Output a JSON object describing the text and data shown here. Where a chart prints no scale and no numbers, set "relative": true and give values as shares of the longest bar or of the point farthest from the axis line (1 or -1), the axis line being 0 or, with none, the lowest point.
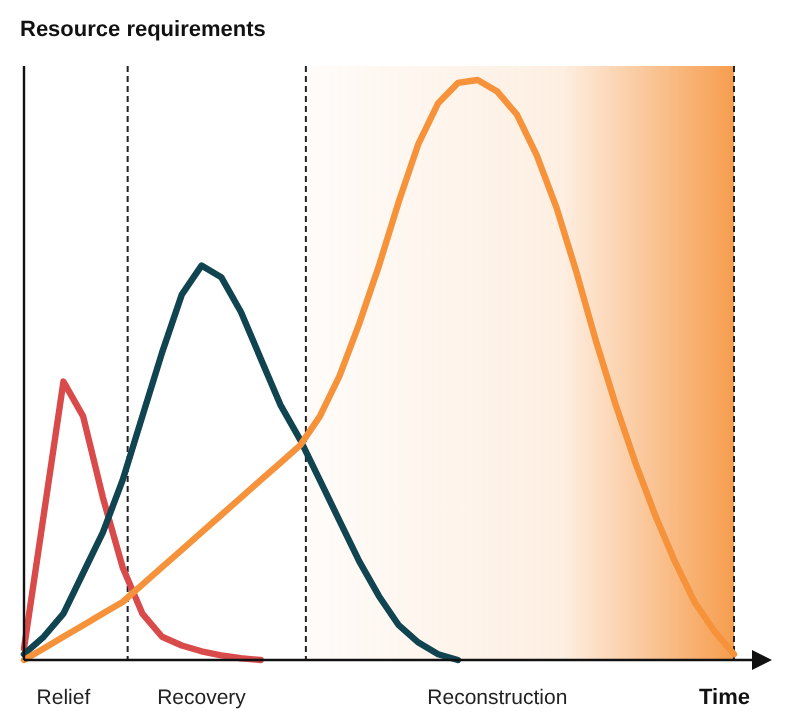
{
  "chart_data": {
    "type": "line",
    "title": "Resource requirements",
    "xlabel": "Time",
    "relative": true,
    "line_style": "solid",
    "marker": "none",
    "categories": [
      null,
      null,
      "Relief",
      null,
      null,
      null,
      null,
      null,
      null,
      "Recovery",
      null,
      null,
      null,
      null,
      null,
      null,
      null,
      null,
      null,
      null,
      null,
      null,
      null,
      null,
      "Reconstruction",
      null,
      null,
      null,
      null,
      null,
      null,
      null,
      null,
      null,
      null,
      null,
      null
    ],
    "series": [
      {
        "color": "#d94a4a",
        "values": [
          0.02,
          0.25,
          0.48,
          0.42,
          0.28,
          0.16,
          0.08,
          0.04,
          0.025,
          0.015,
          0.008,
          0.003,
          0,
          null,
          null,
          null,
          null,
          null,
          null,
          null,
          null,
          null,
          null,
          null,
          null,
          null,
          null,
          null,
          null,
          null,
          null,
          null,
          null,
          null,
          null,
          null,
          null
        ]
      },
      {
        "color": "#0f4450",
        "values": [
          0.01,
          0.04,
          0.08,
          0.15,
          0.22,
          0.31,
          0.42,
          0.53,
          0.63,
          0.68,
          0.66,
          0.6,
          0.52,
          0.44,
          0.38,
          0.31,
          0.24,
          0.17,
          0.11,
          0.06,
          0.03,
          0.01,
          0,
          null,
          null,
          null,
          null,
          null,
          null,
          null,
          null,
          null,
          null,
          null,
          null,
          null,
          null
        ]
      },
      {
        "color": "#f5923a",
        "values": [
          0,
          0.02,
          0.04,
          0.06,
          0.08,
          0.1,
          0.13,
          0.16,
          0.19,
          0.22,
          0.25,
          0.28,
          0.31,
          0.34,
          0.37,
          0.42,
          0.49,
          0.58,
          0.68,
          0.79,
          0.89,
          0.96,
          0.995,
          1,
          0.98,
          0.94,
          0.87,
          0.78,
          0.67,
          0.55,
          0.44,
          0.34,
          0.25,
          0.17,
          0.1,
          0.05,
          0.01
        ]
      }
    ]
  }
}
